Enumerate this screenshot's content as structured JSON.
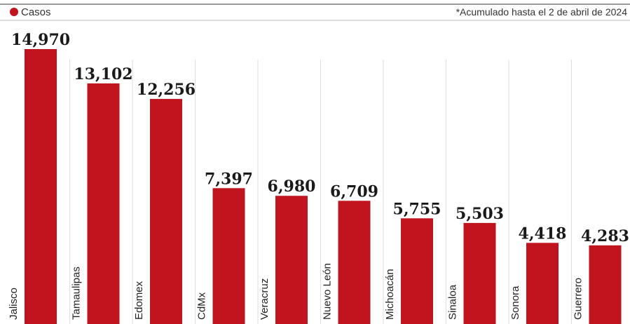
{
  "legend": {
    "label": "Casos",
    "color": "#c0141e"
  },
  "note": "*Acumulado hasta el 2 de abril de 2024",
  "chart_data": {
    "type": "bar",
    "orientation": "vertical",
    "categories": [
      "Jalisco",
      "Tamaulipas",
      "Edomex",
      "CdMx",
      "Veracruz",
      "Nuevo León",
      "Michoacán",
      "Sinaloa",
      "Sonora",
      "Guerrero"
    ],
    "series": [
      {
        "name": "Casos",
        "values": [
          14970,
          13102,
          12256,
          7397,
          6980,
          6709,
          5755,
          5503,
          4418,
          4283
        ]
      }
    ],
    "value_labels": [
      "14,970",
      "13,102",
      "12,256",
      "7,397",
      "6,980",
      "6,709",
      "5,755",
      "5,503",
      "4,418",
      "4,283"
    ],
    "ylim": [
      0,
      14970
    ],
    "legend_position": "top-left",
    "bar_color": "#c0141e",
    "grid": "vertical separators"
  }
}
